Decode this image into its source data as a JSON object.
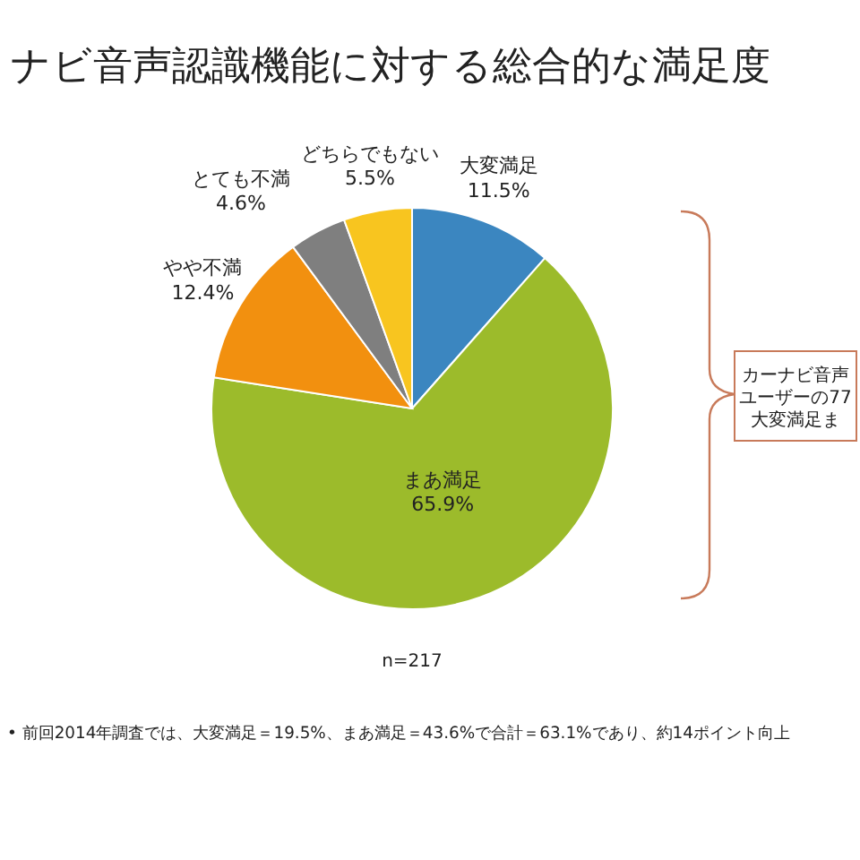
{
  "chart_data": {
    "type": "pie",
    "title": "ナビ音声認識機能に対する総合的な満足度",
    "categories": [
      "大変満足",
      "まあ満足",
      "やや不満",
      "とても不満",
      "どちらでもない"
    ],
    "values": [
      11.5,
      65.9,
      12.4,
      4.6,
      5.5
    ],
    "value_labels": [
      "11.5%",
      "65.9%",
      "12.4%",
      "4.6%",
      "5.5%"
    ],
    "colors": [
      "#3b86c0",
      "#9cbb2b",
      "#f2900f",
      "#7f7f7f",
      "#f8c51f"
    ],
    "annotations": [
      "n=217",
      "カーナビ音声",
      "ユーザーの77",
      "大変満足ま",
      "• 前回2014年調査では、大変満足＝19.5%、まあ満足＝43.6%で合計＝63.1%であり、約14ポイント向上"
    ]
  }
}
